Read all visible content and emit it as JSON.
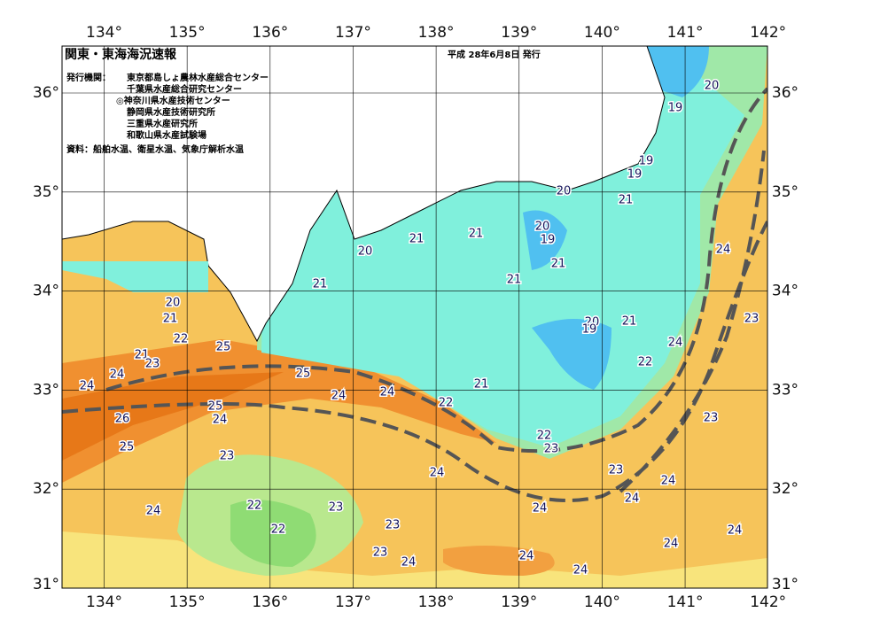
{
  "header": {
    "title": "関東・東海海況速報",
    "date": "平成 28年6月8日 発行",
    "issuer_label": "発行機関：",
    "issuers": [
      "東京都島しょ農林水産総合センター",
      "千葉県水産総合研究センター",
      "◎神奈川県水産技術センター",
      "静岡県水産技術研究所",
      "三重県水産研究所",
      "和歌山県水産試験場"
    ],
    "source": "資料：船舶水温、衛星水温、気象庁解析水温"
  },
  "map": {
    "lon_labels": [
      "134°",
      "135°",
      "136°",
      "137°",
      "138°",
      "139°",
      "140°",
      "141°",
      "142°"
    ],
    "lat_labels": [
      "36°",
      "35°",
      "34°",
      "33°",
      "32°",
      "31°"
    ],
    "contour_labels": [
      "20",
      "19",
      "19",
      "19",
      "20",
      "21",
      "21",
      "21",
      "20",
      "20",
      "19",
      "21",
      "21",
      "21",
      "24",
      "20",
      "21",
      "23",
      "20",
      "19",
      "21",
      "22",
      "25",
      "24",
      "21",
      "23",
      "22",
      "24",
      "25",
      "24",
      "24",
      "24",
      "21",
      "22",
      "25",
      "26",
      "24",
      "23",
      "22",
      "25",
      "23",
      "23",
      "24",
      "23",
      "24",
      "22",
      "24",
      "23",
      "24",
      "24",
      "23",
      "22",
      "24",
      "23",
      "24",
      "24",
      "24",
      "24"
    ]
  }
}
